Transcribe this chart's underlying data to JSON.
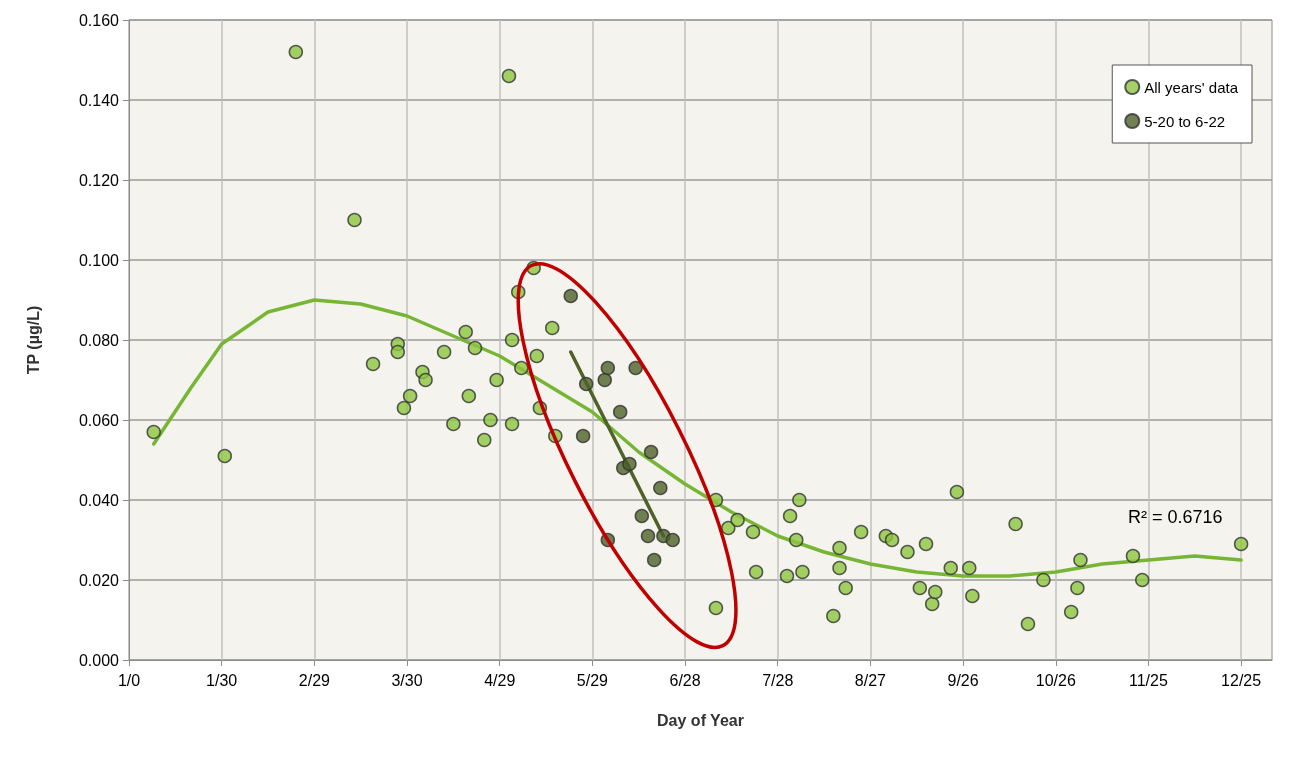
{
  "chart_data": {
    "type": "scatter",
    "xlabel": "Day of Year",
    "ylabel": "TP (µg/L)",
    "xlim": [
      "1999-12-31",
      "2001-01-04"
    ],
    "xticks": [
      {
        "value": "1999-12-31",
        "label": "1/0"
      },
      {
        "value": "--01-30",
        "label": "1/30"
      },
      {
        "value": "--02-29",
        "label": "2/29"
      },
      {
        "value": "--03-30",
        "label": "3/30"
      },
      {
        "value": "--04-29",
        "label": "4/29"
      },
      {
        "value": "--05-29",
        "label": "5/29"
      },
      {
        "value": "--06-28",
        "label": "6/28"
      },
      {
        "value": "--07-28",
        "label": "7/28"
      },
      {
        "value": "--08-27",
        "label": "8/27"
      },
      {
        "value": "--09-26",
        "label": "9/26"
      },
      {
        "value": "--10-26",
        "label": "10/26"
      },
      {
        "value": "--11-25",
        "label": "11/25"
      },
      {
        "value": "--12-25",
        "label": "12/25"
      }
    ],
    "ylim": [
      0,
      0.16
    ],
    "yticks": [
      {
        "value": 0,
        "label": "0.000"
      },
      {
        "value": 0.02,
        "label": "0.020"
      },
      {
        "value": 0.04,
        "label": "0.040"
      },
      {
        "value": 0.06,
        "label": "0.060"
      },
      {
        "value": 0.08,
        "label": "0.080"
      },
      {
        "value": 0.1,
        "label": "0.100"
      },
      {
        "value": 0.12,
        "label": "0.120"
      },
      {
        "value": 0.14,
        "label": "0.140"
      },
      {
        "value": 0.16,
        "label": "0.160"
      }
    ],
    "grid": true,
    "legend": "top right",
    "marker": "circle",
    "annotations": [
      "R² = 0.6716"
    ],
    "series": [
      {
        "name": "All years' data",
        "color": "#8cc63f",
        "x": [
          "--01-08",
          "--01-31",
          "--02-23",
          "--03-13",
          "--03-19",
          "--03-27",
          "--03-27",
          "--03-29",
          "--03-31",
          "--04-04",
          "--04-05",
          "--04-11",
          "--04-14",
          "--04-18",
          "--04-19",
          "--04-21",
          "--04-24",
          "--04-26",
          "--04-28",
          "--05-02",
          "--05-03",
          "--05-03",
          "--05-05",
          "--05-06",
          "--05-10",
          "--05-11",
          "--05-12",
          "--05-16",
          "--05-17",
          "--07-08",
          "--07-08",
          "--07-12",
          "--07-15",
          "--07-20",
          "--07-21",
          "--07-31",
          "--08-01",
          "--08-03",
          "--08-04",
          "--08-05",
          "--08-15",
          "--08-17",
          "--08-17",
          "--08-19",
          "--08-24",
          "--09-01",
          "--09-03",
          "--09-08",
          "--09-12",
          "--09-14",
          "--09-16",
          "--09-17",
          "--09-22",
          "--09-24",
          "--09-28",
          "--09-29",
          "--10-13",
          "--10-17",
          "--10-22",
          "--10-31",
          "--11-02",
          "--11-03",
          "--11-20",
          "--11-23",
          "--12-25"
        ],
        "values": [
          0.057,
          0.051,
          0.152,
          0.11,
          0.074,
          0.079,
          0.077,
          0.063,
          0.066,
          0.072,
          0.07,
          0.077,
          0.059,
          0.082,
          0.066,
          0.078,
          0.055,
          0.06,
          0.07,
          0.146,
          0.08,
          0.059,
          0.092,
          0.073,
          0.098,
          0.076,
          0.063,
          0.083,
          0.056,
          0.04,
          0.013,
          0.033,
          0.035,
          0.032,
          0.022,
          0.021,
          0.036,
          0.03,
          0.04,
          0.022,
          0.011,
          0.028,
          0.023,
          0.018,
          0.032,
          0.031,
          0.03,
          0.027,
          0.018,
          0.029,
          0.014,
          0.017,
          0.023,
          0.042,
          0.023,
          0.016,
          0.034,
          0.009,
          0.02,
          0.012,
          0.018,
          0.025,
          0.026,
          0.02,
          0.029
        ]
      },
      {
        "name": "5-20 to 6-22",
        "color": "#4f6228",
        "x": [
          "--05-22",
          "--05-26",
          "--05-27",
          "--06-02",
          "--06-03",
          "--06-03",
          "--06-07",
          "--06-08",
          "--06-10",
          "--06-12",
          "--06-14",
          "--06-16",
          "--06-17",
          "--06-18",
          "--06-20",
          "--06-21",
          "--06-24"
        ],
        "values": [
          0.091,
          0.056,
          0.069,
          0.07,
          0.073,
          0.03,
          0.062,
          0.048,
          0.049,
          0.073,
          0.036,
          0.031,
          0.052,
          0.025,
          0.043,
          0.031,
          0.03
        ]
      },
      {
        "type": "line",
        "color": "#77b634",
        "marker": "none",
        "x": [
          "--01-08",
          "--01-20",
          "--01-30",
          "--02-14",
          "--02-29",
          "--03-15",
          "--03-30",
          "--04-14",
          "--04-29",
          "--05-14",
          "--05-29",
          "--06-13",
          "--06-28",
          "--07-13",
          "--07-28",
          "--08-12",
          "--08-27",
          "--09-11",
          "--09-26",
          "--10-11",
          "--10-26",
          "--11-10",
          "--11-25",
          "--12-10",
          "--12-25"
        ],
        "values": [
          0.054,
          0.068,
          0.079,
          0.087,
          0.09,
          0.089,
          0.086,
          0.081,
          0.076,
          0.069,
          0.062,
          0.052,
          0.044,
          0.037,
          0.031,
          0.027,
          0.024,
          0.022,
          0.021,
          0.021,
          0.022,
          0.024,
          0.025,
          0.026,
          0.025
        ]
      },
      {
        "type": "line",
        "color": "#4f6228",
        "marker": "none",
        "x": [
          "--05-22",
          "--06-21"
        ],
        "values": [
          0.077,
          0.031
        ]
      }
    ]
  }
}
